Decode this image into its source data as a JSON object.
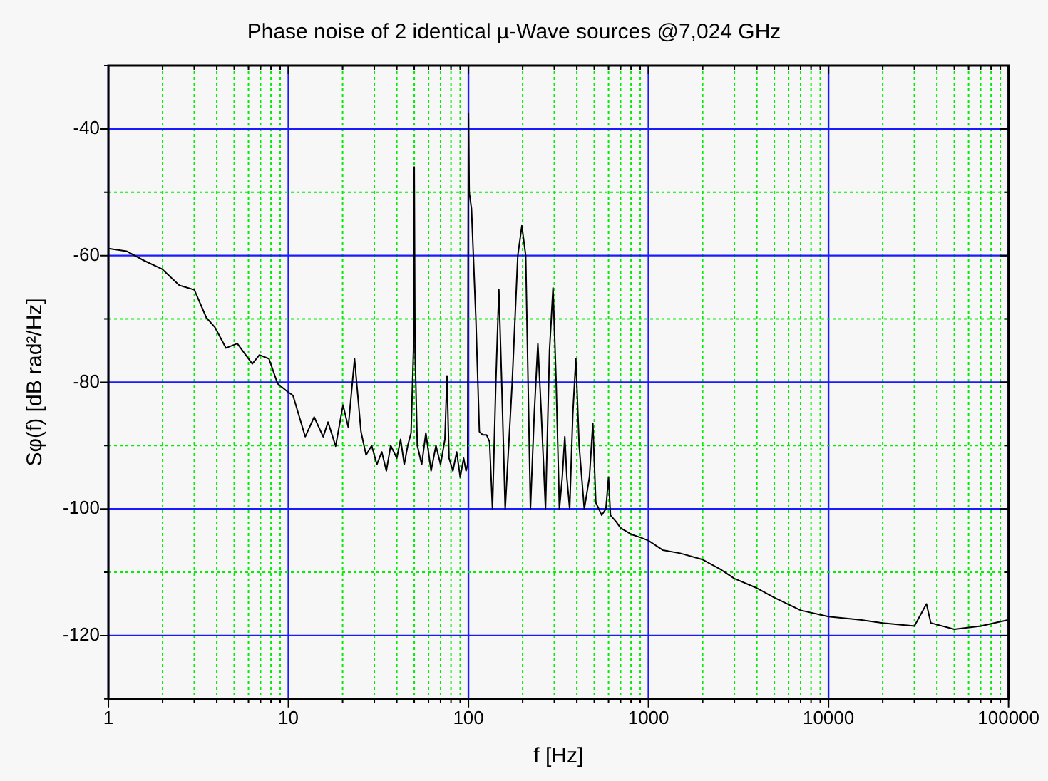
{
  "chart_data": {
    "type": "line",
    "title": "Phase noise of 2 identical µ-Wave sources @7,024 GHz",
    "xlabel": "f [Hz]",
    "ylabel": "Sφ(f) [dB rad²/Hz]",
    "log": "x",
    "grid": true,
    "marker": "none",
    "line_style": "solid",
    "xlim": [
      1,
      100000
    ],
    "ylim": [
      -130,
      -30
    ],
    "xticks": [
      1,
      {
        "value": 2,
        "label": null
      },
      {
        "value": 3,
        "label": null
      },
      {
        "value": 4,
        "label": null
      },
      {
        "value": 5,
        "label": null
      },
      {
        "value": 6,
        "label": null
      },
      {
        "value": 7,
        "label": null
      },
      {
        "value": 8,
        "label": null
      },
      {
        "value": 9,
        "label": null
      },
      10,
      {
        "value": 20,
        "label": null
      },
      {
        "value": 30,
        "label": null
      },
      {
        "value": 40,
        "label": null
      },
      {
        "value": 50,
        "label": null
      },
      {
        "value": 60,
        "label": null
      },
      {
        "value": 70,
        "label": null
      },
      {
        "value": 80,
        "label": null
      },
      {
        "value": 90,
        "label": null
      },
      100,
      {
        "value": 200,
        "label": null
      },
      {
        "value": 300,
        "label": null
      },
      {
        "value": 400,
        "label": null
      },
      {
        "value": 500,
        "label": null
      },
      {
        "value": 600,
        "label": null
      },
      {
        "value": 700,
        "label": null
      },
      {
        "value": 800,
        "label": null
      },
      {
        "value": 900,
        "label": null
      },
      1000,
      {
        "value": 2000,
        "label": null
      },
      {
        "value": 3000,
        "label": null
      },
      {
        "value": 4000,
        "label": null
      },
      {
        "value": 5000,
        "label": null
      },
      {
        "value": 6000,
        "label": null
      },
      {
        "value": 7000,
        "label": null
      },
      {
        "value": 8000,
        "label": null
      },
      {
        "value": 9000,
        "label": null
      },
      10000,
      {
        "value": 20000,
        "label": null
      },
      {
        "value": 30000,
        "label": null
      },
      {
        "value": 40000,
        "label": null
      },
      {
        "value": 50000,
        "label": null
      },
      {
        "value": 60000,
        "label": null
      },
      {
        "value": 70000,
        "label": null
      },
      {
        "value": 80000,
        "label": null
      },
      {
        "value": 90000,
        "label": null
      },
      100000
    ],
    "yticks": [
      {
        "value": -130,
        "label": null
      },
      -120,
      {
        "value": -110,
        "label": null
      },
      -100,
      {
        "value": -90,
        "label": null
      },
      -80,
      {
        "value": -70,
        "label": null
      },
      -60,
      {
        "value": -50,
        "label": null
      },
      -40,
      {
        "value": -30,
        "label": null
      }
    ],
    "x": [
      1,
      1.26,
      1.58,
      1.98,
      2.48,
      3.0,
      3.5,
      3.9,
      4.5,
      5.2,
      6.3,
      6.9,
      7.8,
      8.7,
      9.7,
      10.6,
      12.4,
      13.9,
      15.6,
      16.6,
      18.3,
      20.1,
      21.5,
      23.3,
      25.3,
      27,
      29,
      31,
      33,
      35,
      37,
      40,
      42,
      44,
      46,
      48,
      49.5,
      50,
      50.5,
      52,
      55,
      58,
      62,
      66,
      70,
      74,
      76,
      78,
      82,
      86,
      90,
      94,
      97,
      99,
      100,
      101,
      104,
      110,
      115,
      120,
      126,
      131,
      136,
      142,
      147.6,
      153,
      160,
      175,
      188,
      198,
      208,
      221,
      232,
      243,
      254,
      268,
      282,
      295,
      307,
      320,
      332,
      343,
      352,
      365,
      380,
      395,
      412,
      440,
      470,
      491,
      510,
      550,
      580,
      600,
      615,
      660,
      700,
      800,
      900,
      1000,
      1200,
      1500,
      2000,
      2500,
      3000,
      4000,
      5000,
      7000,
      10000,
      15000,
      20000,
      30000,
      35000,
      37000,
      50000,
      70000,
      100000
    ],
    "series": [
      {
        "color": "#000000",
        "values": [
          -58.9,
          -59.3,
          -60.8,
          -62.1,
          -64.7,
          -65.4,
          -69.8,
          -71.3,
          -74.6,
          -73.9,
          -77.1,
          -75.7,
          -76.3,
          -80.2,
          -81.3,
          -82.1,
          -88.6,
          -85.5,
          -88.6,
          -86.3,
          -90.1,
          -83.6,
          -87.1,
          -76.3,
          -87.8,
          -91.5,
          -90,
          -93,
          -91,
          -94,
          -90,
          -92,
          -89,
          -93,
          -90,
          -88,
          -75,
          -46,
          -75,
          -90,
          -93,
          -88,
          -94,
          -90,
          -93,
          -89,
          -79,
          -92,
          -94,
          -91,
          -95,
          -92,
          -94,
          -93,
          -37.6,
          -50,
          -52.6,
          -70,
          -87.8,
          -88.3,
          -88.3,
          -89.4,
          -100,
          -80,
          -65.4,
          -80,
          -100,
          -80,
          -60,
          -55.3,
          -60,
          -100,
          -85,
          -73.9,
          -85,
          -100,
          -75,
          -65.1,
          -80,
          -100,
          -95,
          -88.6,
          -95,
          -100,
          -85,
          -76.3,
          -90,
          -100,
          -95,
          -86.5,
          -99,
          -101,
          -100,
          -95,
          -101,
          -102,
          -103,
          -104,
          -104.5,
          -105,
          -106.5,
          -107,
          -108,
          -109.5,
          -111,
          -112.5,
          -114,
          -116,
          -117,
          -117.5,
          -118,
          -118.5,
          -115,
          -118,
          -119,
          -118.5,
          -117.5
        ]
      }
    ]
  }
}
